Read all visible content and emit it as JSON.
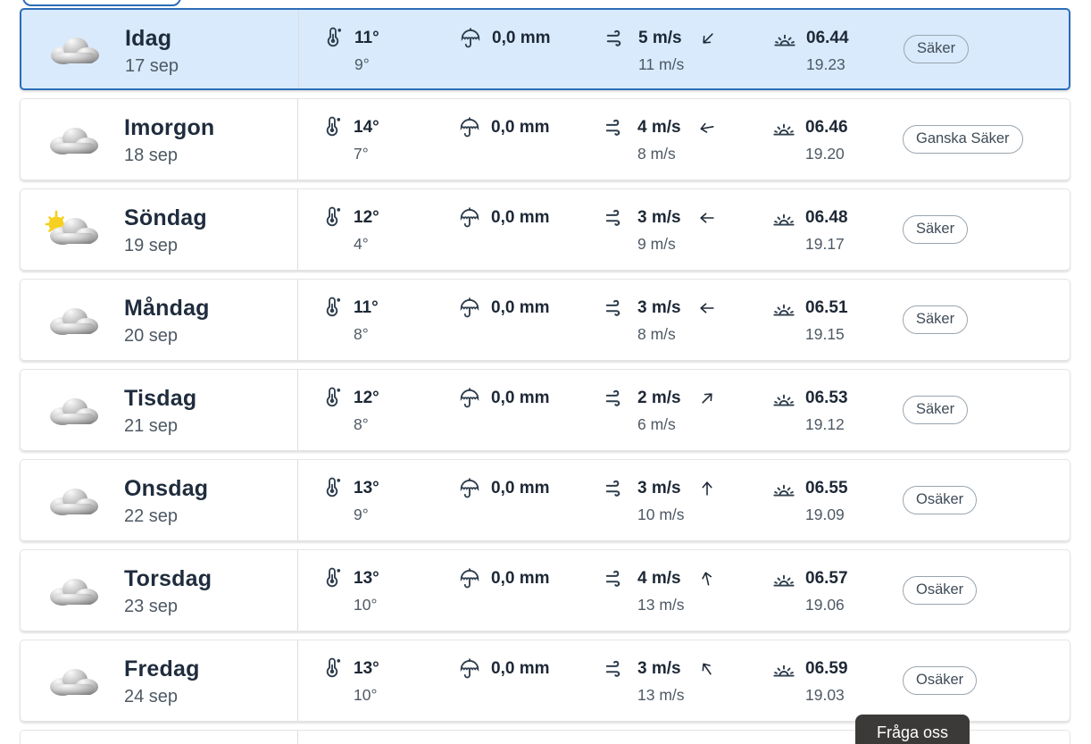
{
  "top_tab": {
    "note": ""
  },
  "icons": {
    "weather_clear": "sun-cloud-icon",
    "weather_cloudy": "cloud-icon",
    "temperature": "thermometer-icon",
    "precipitation": "umbrella-icon",
    "wind": "wind-icon",
    "sun_times": "sunrise-icon",
    "wind_direction": "arrow-icon"
  },
  "rows": [
    {
      "day": "Idag",
      "date": "17 sep",
      "icon": "cloud",
      "temp_high": "11°",
      "temp_low": "9°",
      "precipitation": "0,0 mm",
      "wind": "5 m/s",
      "wind_gust": "11 m/s",
      "wind_dir_deg": 135,
      "sunrise": "06.44",
      "sunset": "19.23",
      "certainty": "Säker",
      "highlighted": true
    },
    {
      "day": "Imorgon",
      "date": "18 sep",
      "icon": "cloud",
      "temp_high": "14°",
      "temp_low": "7°",
      "precipitation": "0,0 mm",
      "wind": "4 m/s",
      "wind_gust": "8 m/s",
      "wind_dir_deg": 170,
      "sunrise": "06.46",
      "sunset": "19.20",
      "certainty": "Ganska Säker",
      "highlighted": false
    },
    {
      "day": "Söndag",
      "date": "19 sep",
      "icon": "sun-cloud",
      "temp_high": "12°",
      "temp_low": "4°",
      "precipitation": "0,0 mm",
      "wind": "3 m/s",
      "wind_gust": "9 m/s",
      "wind_dir_deg": 180,
      "sunrise": "06.48",
      "sunset": "19.17",
      "certainty": "Säker",
      "highlighted": false
    },
    {
      "day": "Måndag",
      "date": "20 sep",
      "icon": "cloud",
      "temp_high": "11°",
      "temp_low": "8°",
      "precipitation": "0,0 mm",
      "wind": "3 m/s",
      "wind_gust": "8 m/s",
      "wind_dir_deg": 180,
      "sunrise": "06.51",
      "sunset": "19.15",
      "certainty": "Säker",
      "highlighted": false
    },
    {
      "day": "Tisdag",
      "date": "21 sep",
      "icon": "cloud",
      "temp_high": "12°",
      "temp_low": "8°",
      "precipitation": "0,0 mm",
      "wind": "2 m/s",
      "wind_gust": "6 m/s",
      "wind_dir_deg": -45,
      "sunrise": "06.53",
      "sunset": "19.12",
      "certainty": "Säker",
      "highlighted": false
    },
    {
      "day": "Onsdag",
      "date": "22 sep",
      "icon": "cloud",
      "temp_high": "13°",
      "temp_low": "9°",
      "precipitation": "0,0 mm",
      "wind": "3 m/s",
      "wind_gust": "10 m/s",
      "wind_dir_deg": -90,
      "sunrise": "06.55",
      "sunset": "19.09",
      "certainty": "Osäker",
      "highlighted": false
    },
    {
      "day": "Torsdag",
      "date": "23 sep",
      "icon": "cloud",
      "temp_high": "13°",
      "temp_low": "10°",
      "precipitation": "0,0 mm",
      "wind": "4 m/s",
      "wind_gust": "13 m/s",
      "wind_dir_deg": -103,
      "sunrise": "06.57",
      "sunset": "19.06",
      "certainty": "Osäker",
      "highlighted": false
    },
    {
      "day": "Fredag",
      "date": "24 sep",
      "icon": "cloud",
      "temp_high": "13°",
      "temp_low": "10°",
      "precipitation": "0,0 mm",
      "wind": "3 m/s",
      "wind_gust": "13 m/s",
      "wind_dir_deg": -125,
      "sunrise": "06.59",
      "sunset": "19.03",
      "certainty": "Osäker",
      "highlighted": false
    }
  ],
  "footer": {
    "ask_us_label": "Fråga oss"
  },
  "colors": {
    "highlight_bg": "#d9eafc",
    "highlight_border": "#2d6db8",
    "card_border": "#e4e4e4",
    "text_primary": "#1d2836",
    "text_secondary": "#4e5964",
    "badge_border": "#9aa5ae",
    "ask_us_bg": "#3b3a38",
    "sun_yellow": "#f7d021"
  }
}
